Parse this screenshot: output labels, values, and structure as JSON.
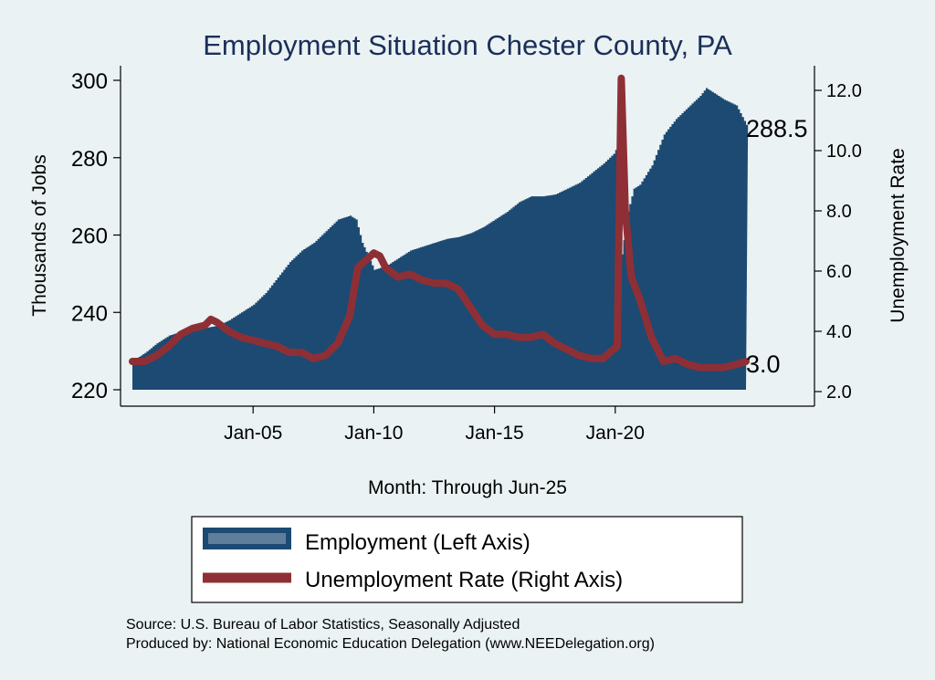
{
  "chart_data": {
    "type": "area",
    "title": "Employment Situation Chester  County, PA",
    "xlabel": "Month: Through Jun-25",
    "ylabel_left": "Thousands of Jobs",
    "ylabel_right": "Unemployment Rate",
    "x_range": [
      "Jan-00",
      "Jun-25"
    ],
    "x_ticks": [
      "Jan-05",
      "Jan-10",
      "Jan-15",
      "Jan-20"
    ],
    "y_left_lim": [
      220,
      300
    ],
    "y_left_ticks": [
      "220",
      "240",
      "260",
      "280",
      "300"
    ],
    "y_right_lim": [
      2.0,
      12.0
    ],
    "y_right_ticks": [
      "2.0",
      "4.0",
      "6.0",
      "8.0",
      "10.0",
      "12.0"
    ],
    "grid": false,
    "legend_position": "bottom",
    "series": [
      {
        "name": "Employment (Left Axis)",
        "axis": "left",
        "type": "area",
        "color": "#1c4a73",
        "points": [
          [
            "2000-01",
            227.5
          ],
          [
            "2000-07",
            229.5
          ],
          [
            "2001-01",
            232
          ],
          [
            "2001-07",
            234
          ],
          [
            "2002-01",
            235
          ],
          [
            "2002-07",
            235.5
          ],
          [
            "2003-01",
            236
          ],
          [
            "2003-07",
            236.5
          ],
          [
            "2004-01",
            238
          ],
          [
            "2004-07",
            240
          ],
          [
            "2005-01",
            242
          ],
          [
            "2005-07",
            245
          ],
          [
            "2006-01",
            249
          ],
          [
            "2006-07",
            253
          ],
          [
            "2007-01",
            256
          ],
          [
            "2007-07",
            258
          ],
          [
            "2008-01",
            261
          ],
          [
            "2008-07",
            264
          ],
          [
            "2009-01",
            265
          ],
          [
            "2009-04",
            264
          ],
          [
            "2009-07",
            258
          ],
          [
            "2010-01",
            251
          ],
          [
            "2010-07",
            252
          ],
          [
            "2011-01",
            254
          ],
          [
            "2011-07",
            256
          ],
          [
            "2012-01",
            257
          ],
          [
            "2012-07",
            258
          ],
          [
            "2013-01",
            259
          ],
          [
            "2013-07",
            259.5
          ],
          [
            "2014-01",
            260.5
          ],
          [
            "2014-07",
            262
          ],
          [
            "2015-01",
            264
          ],
          [
            "2015-07",
            266
          ],
          [
            "2016-01",
            268.5
          ],
          [
            "2016-07",
            270
          ],
          [
            "2017-01",
            270
          ],
          [
            "2017-07",
            270.5
          ],
          [
            "2018-01",
            272
          ],
          [
            "2018-07",
            273.5
          ],
          [
            "2019-01",
            276
          ],
          [
            "2019-07",
            278.5
          ],
          [
            "2019-12",
            281
          ],
          [
            "2020-01",
            282
          ],
          [
            "2020-02",
            282
          ],
          [
            "2020-04",
            255
          ],
          [
            "2020-07",
            266
          ],
          [
            "2020-10",
            272
          ],
          [
            "2021-01",
            273
          ],
          [
            "2021-07",
            278
          ],
          [
            "2022-01",
            286
          ],
          [
            "2022-07",
            290
          ],
          [
            "2023-01",
            293
          ],
          [
            "2023-07",
            296
          ],
          [
            "2023-10",
            298
          ],
          [
            "2024-01",
            297
          ],
          [
            "2024-07",
            295
          ],
          [
            "2025-01",
            293.5
          ],
          [
            "2025-06",
            288.5
          ]
        ],
        "last_label": "288.5"
      },
      {
        "name": "Unemployment Rate (Right Axis)",
        "axis": "right",
        "type": "line",
        "color": "#8e2f36",
        "points": [
          [
            "2000-01",
            3.0
          ],
          [
            "2000-07",
            3.0
          ],
          [
            "2001-01",
            3.2
          ],
          [
            "2001-07",
            3.5
          ],
          [
            "2002-01",
            3.9
          ],
          [
            "2002-07",
            4.1
          ],
          [
            "2003-01",
            4.2
          ],
          [
            "2003-04",
            4.4
          ],
          [
            "2003-07",
            4.3
          ],
          [
            "2004-01",
            4.0
          ],
          [
            "2004-07",
            3.8
          ],
          [
            "2005-01",
            3.7
          ],
          [
            "2005-07",
            3.6
          ],
          [
            "2006-01",
            3.5
          ],
          [
            "2006-07",
            3.3
          ],
          [
            "2007-01",
            3.3
          ],
          [
            "2007-07",
            3.1
          ],
          [
            "2008-01",
            3.2
          ],
          [
            "2008-07",
            3.6
          ],
          [
            "2009-01",
            4.5
          ],
          [
            "2009-05",
            6.1
          ],
          [
            "2009-08",
            6.3
          ],
          [
            "2010-01",
            6.6
          ],
          [
            "2010-04",
            6.5
          ],
          [
            "2010-07",
            6.1
          ],
          [
            "2011-01",
            5.8
          ],
          [
            "2011-07",
            5.9
          ],
          [
            "2012-01",
            5.7
          ],
          [
            "2012-07",
            5.6
          ],
          [
            "2013-01",
            5.6
          ],
          [
            "2013-07",
            5.4
          ],
          [
            "2014-01",
            4.8
          ],
          [
            "2014-07",
            4.2
          ],
          [
            "2015-01",
            3.9
          ],
          [
            "2015-07",
            3.9
          ],
          [
            "2016-01",
            3.8
          ],
          [
            "2016-07",
            3.8
          ],
          [
            "2017-01",
            3.9
          ],
          [
            "2017-07",
            3.6
          ],
          [
            "2018-01",
            3.4
          ],
          [
            "2018-07",
            3.2
          ],
          [
            "2019-01",
            3.1
          ],
          [
            "2019-07",
            3.1
          ],
          [
            "2019-12",
            3.4
          ],
          [
            "2020-02",
            3.5
          ],
          [
            "2020-04",
            12.4
          ],
          [
            "2020-06",
            8.0
          ],
          [
            "2020-09",
            5.8
          ],
          [
            "2021-01",
            5.1
          ],
          [
            "2021-07",
            3.8
          ],
          [
            "2022-01",
            3.0
          ],
          [
            "2022-07",
            3.1
          ],
          [
            "2023-01",
            2.9
          ],
          [
            "2023-07",
            2.8
          ],
          [
            "2024-01",
            2.8
          ],
          [
            "2024-07",
            2.8
          ],
          [
            "2025-01",
            2.9
          ],
          [
            "2025-06",
            3.0
          ]
        ],
        "last_label": "3.0"
      }
    ]
  },
  "notes": {
    "source": "Source: U.S. Bureau of Labor Statistics, Seasonally Adjusted",
    "produced": "Produced by: National Economic Education Delegation (www.NEEDelegation.org)"
  }
}
